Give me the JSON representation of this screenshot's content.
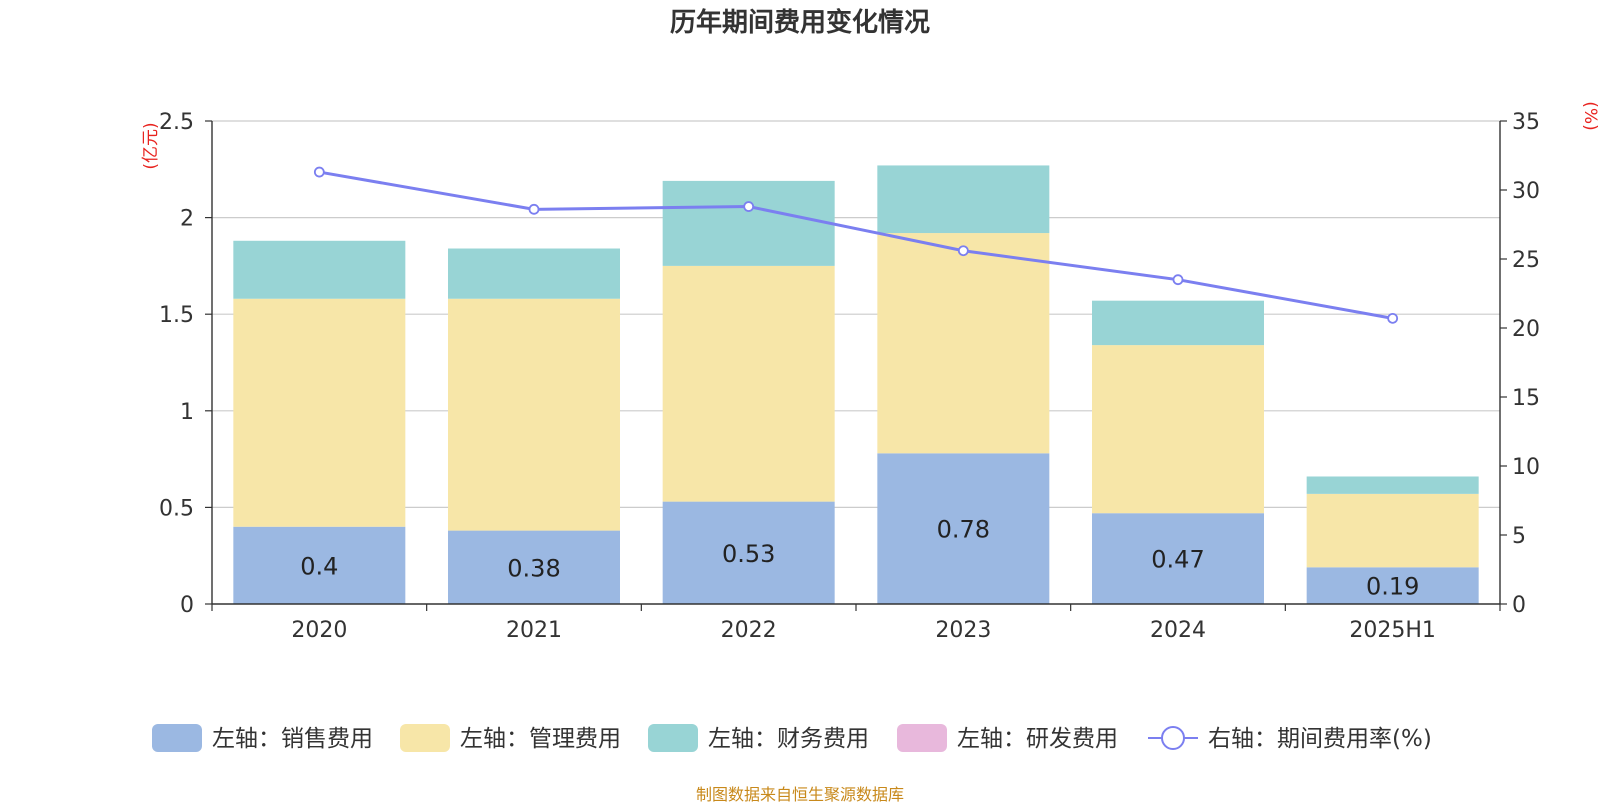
{
  "title": "历年期间费用变化情况",
  "source": "制图数据来自恒生聚源数据库",
  "chart_data": {
    "type": "bar",
    "stacked": true,
    "categories": [
      "2020",
      "2021",
      "2022",
      "2023",
      "2024",
      "2025H1"
    ],
    "left_axis": {
      "unit": "(亿元)",
      "ylim": [
        0,
        2.5
      ],
      "ticks": [
        "0",
        "0.5",
        "1",
        "1.5",
        "2",
        "2.5"
      ]
    },
    "right_axis": {
      "unit": "(%)",
      "ylim": [
        0,
        35
      ],
      "ticks": [
        "0",
        "5",
        "10",
        "15",
        "20",
        "25",
        "30",
        "35"
      ]
    },
    "series": [
      {
        "name": "左轴：销售费用",
        "color": "#9bb8e2",
        "values": [
          0.4,
          0.38,
          0.53,
          0.78,
          0.47,
          0.19
        ],
        "labels": [
          "0.4",
          "0.38",
          "0.53",
          "0.78",
          "0.47",
          "0.19"
        ]
      },
      {
        "name": "左轴：管理费用",
        "color": "#f7e6a8",
        "values": [
          1.18,
          1.2,
          1.22,
          1.14,
          0.87,
          0.38
        ]
      },
      {
        "name": "左轴：财务费用",
        "color": "#98d4d5",
        "values": [
          0.3,
          0.26,
          0.44,
          0.35,
          0.23,
          0.09
        ]
      },
      {
        "name": "左轴：研发费用",
        "color": "#e8b8dc",
        "values": [
          0,
          0,
          0,
          0,
          0,
          0
        ]
      },
      {
        "name": "右轴：期间费用率(%)",
        "type": "line",
        "axis": "right",
        "color": "#7b7ff0",
        "values": [
          31.3,
          28.6,
          28.8,
          25.6,
          23.5,
          20.7
        ]
      }
    ],
    "grid": true,
    "legend_position": "bottom"
  }
}
